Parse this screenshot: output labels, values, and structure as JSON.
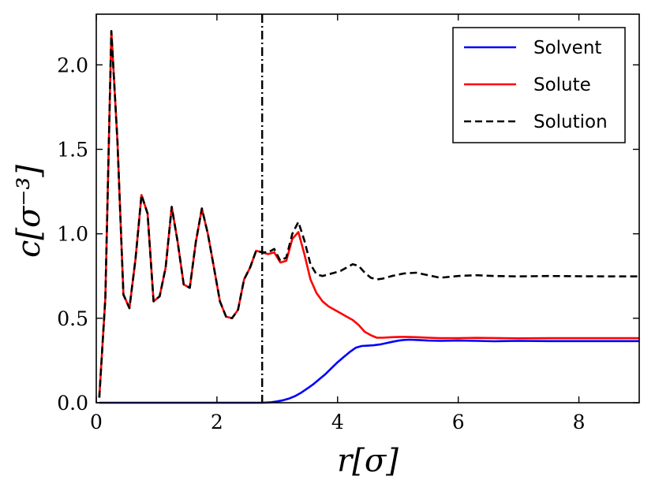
{
  "chart_data": {
    "type": "line",
    "xlabel": "r[σ]",
    "ylabel": "c[σ⁻³]",
    "xlim": [
      0,
      9
    ],
    "ylim": [
      0,
      2.3
    ],
    "xticks": [
      0,
      2,
      4,
      6,
      8
    ],
    "xtick_labels": [
      "0",
      "2",
      "4",
      "6",
      "8"
    ],
    "yticks": [
      0,
      0.5,
      1.0,
      1.5,
      2.0
    ],
    "ytick_labels": [
      "0.0",
      "0.5",
      "1.0",
      "1.5",
      "2.0"
    ],
    "grid": false,
    "legend": {
      "position": "top-right"
    },
    "vline": {
      "x": 2.75,
      "style": "dashdot",
      "color": "#000000"
    },
    "series": [
      {
        "name": "Solvent",
        "color": "#0000ff",
        "style": "solid",
        "x": [
          0.05,
          2.75,
          2.9,
          3.0,
          3.1,
          3.2,
          3.3,
          3.4,
          3.5,
          3.6,
          3.7,
          3.8,
          3.9,
          4.0,
          4.1,
          4.2,
          4.3,
          4.4,
          4.5,
          4.6,
          4.7,
          4.8,
          4.9,
          5.0,
          5.1,
          5.2,
          5.3,
          5.5,
          5.7,
          6.0,
          6.3,
          6.6,
          7.0,
          7.5,
          8.0,
          8.5,
          9.0
        ],
        "values": [
          0.0,
          0.0,
          0.003,
          0.008,
          0.015,
          0.025,
          0.04,
          0.06,
          0.085,
          0.11,
          0.14,
          0.17,
          0.205,
          0.24,
          0.27,
          0.3,
          0.325,
          0.336,
          0.338,
          0.34,
          0.345,
          0.352,
          0.36,
          0.367,
          0.372,
          0.373,
          0.372,
          0.368,
          0.366,
          0.368,
          0.366,
          0.364,
          0.366,
          0.365,
          0.365,
          0.365,
          0.365
        ]
      },
      {
        "name": "Solute",
        "color": "#ff0000",
        "style": "solid",
        "x": [
          0.05,
          0.15,
          0.25,
          0.35,
          0.45,
          0.55,
          0.65,
          0.75,
          0.85,
          0.95,
          1.05,
          1.15,
          1.25,
          1.35,
          1.45,
          1.55,
          1.65,
          1.75,
          1.85,
          1.95,
          2.05,
          2.15,
          2.25,
          2.35,
          2.45,
          2.55,
          2.65,
          2.75,
          2.85,
          2.95,
          3.05,
          3.15,
          3.25,
          3.35,
          3.45,
          3.55,
          3.65,
          3.75,
          3.85,
          3.95,
          4.05,
          4.15,
          4.25,
          4.35,
          4.45,
          4.55,
          4.65,
          4.75,
          4.9,
          5.1,
          5.3,
          5.5,
          5.7,
          6.0,
          6.3,
          6.6,
          7.0,
          7.5,
          8.0,
          8.5,
          9.0
        ],
        "values": [
          0.03,
          0.62,
          2.2,
          1.55,
          0.64,
          0.56,
          0.85,
          1.23,
          1.12,
          0.6,
          0.63,
          0.8,
          1.16,
          0.95,
          0.7,
          0.68,
          0.95,
          1.15,
          1.0,
          0.8,
          0.6,
          0.51,
          0.5,
          0.55,
          0.73,
          0.8,
          0.9,
          0.89,
          0.88,
          0.89,
          0.83,
          0.84,
          0.97,
          1.01,
          0.88,
          0.73,
          0.65,
          0.6,
          0.57,
          0.55,
          0.53,
          0.51,
          0.49,
          0.46,
          0.42,
          0.4,
          0.385,
          0.385,
          0.388,
          0.39,
          0.388,
          0.385,
          0.382,
          0.382,
          0.384,
          0.383,
          0.381,
          0.382,
          0.382,
          0.382,
          0.382
        ]
      },
      {
        "name": "Solution",
        "color": "#000000",
        "style": "dashed",
        "x": [
          0.05,
          0.15,
          0.25,
          0.35,
          0.45,
          0.55,
          0.65,
          0.75,
          0.85,
          0.95,
          1.05,
          1.15,
          1.25,
          1.35,
          1.45,
          1.55,
          1.65,
          1.75,
          1.85,
          1.95,
          2.05,
          2.15,
          2.25,
          2.35,
          2.45,
          2.55,
          2.65,
          2.75,
          2.85,
          2.95,
          3.05,
          3.15,
          3.25,
          3.35,
          3.45,
          3.55,
          3.65,
          3.75,
          3.85,
          3.95,
          4.05,
          4.15,
          4.25,
          4.35,
          4.45,
          4.55,
          4.65,
          4.75,
          4.9,
          5.1,
          5.3,
          5.5,
          5.7,
          6.0,
          6.3,
          6.6,
          7.0,
          7.5,
          8.0,
          8.5,
          9.0
        ],
        "values": [
          0.03,
          0.62,
          2.2,
          1.55,
          0.64,
          0.56,
          0.85,
          1.23,
          1.12,
          0.6,
          0.63,
          0.8,
          1.16,
          0.95,
          0.7,
          0.68,
          0.95,
          1.15,
          1.0,
          0.8,
          0.6,
          0.51,
          0.5,
          0.55,
          0.73,
          0.8,
          0.9,
          0.89,
          0.89,
          0.91,
          0.84,
          0.86,
          1.0,
          1.07,
          0.96,
          0.82,
          0.76,
          0.75,
          0.76,
          0.77,
          0.78,
          0.8,
          0.82,
          0.81,
          0.77,
          0.74,
          0.73,
          0.735,
          0.75,
          0.765,
          0.77,
          0.755,
          0.74,
          0.75,
          0.755,
          0.75,
          0.748,
          0.75,
          0.749,
          0.748,
          0.748
        ]
      }
    ]
  }
}
